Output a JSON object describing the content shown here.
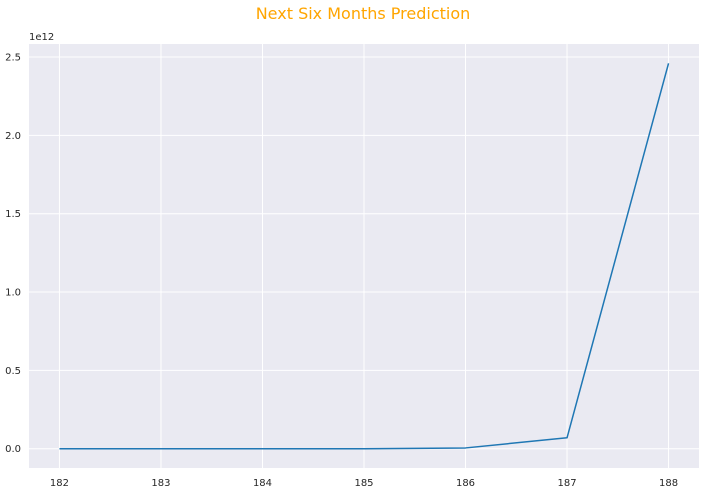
{
  "chart_data": {
    "type": "line",
    "title": "Next Six Months Prediction",
    "xlabel": "",
    "ylabel": "",
    "x": [
      182,
      183,
      184,
      185,
      186,
      187,
      188
    ],
    "series": [
      {
        "values": [
          0,
          0,
          0,
          0,
          5000000000,
          70000000000,
          2460000000000
        ]
      }
    ],
    "x_ticks": [
      "182",
      "183",
      "184",
      "185",
      "186",
      "187",
      "188"
    ],
    "y_ticks": [
      {
        "value": 0,
        "label": "0.0"
      },
      {
        "value": 500000000000,
        "label": "0.5"
      },
      {
        "value": 1000000000000,
        "label": "1.0"
      },
      {
        "value": 1500000000000,
        "label": "1.5"
      },
      {
        "value": 2000000000000,
        "label": "2.0"
      },
      {
        "value": 2500000000000,
        "label": "2.5"
      }
    ],
    "y_offset_label": "1e12",
    "xlim": [
      181.7,
      188.3
    ],
    "ylim": [
      -123000000000,
      2583000000000
    ],
    "grid": true,
    "legend": "none",
    "colors": {
      "line": "#1f77b4",
      "background": "#EAEAF2",
      "grid": "#ffffff",
      "title": "#FFA500"
    }
  }
}
